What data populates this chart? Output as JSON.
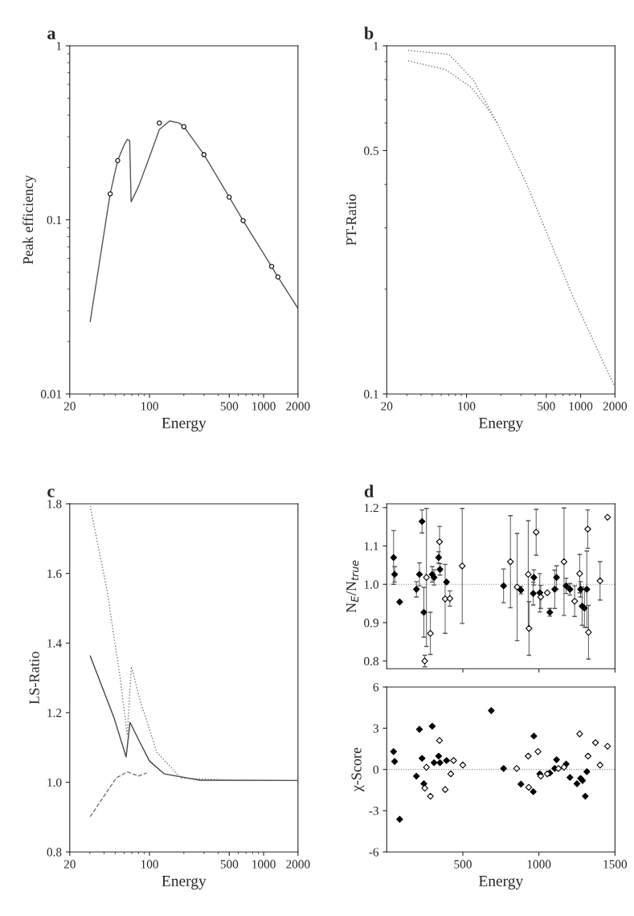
{
  "chart_data": [
    {
      "type": "line",
      "title": "a",
      "xlabel": "Energy",
      "ylabel": "Peak efficiency",
      "log": "xy",
      "xlim": [
        20,
        2000
      ],
      "xticks": [
        20,
        100,
        500,
        1000,
        2000
      ],
      "ylim": [
        0.01,
        1
      ],
      "yticks": [
        0.01,
        0.1,
        1
      ],
      "series": [
        {
          "type": "line",
          "color": "#555555",
          "line_style": "solid",
          "x": [
            30.2,
            45.2,
            52.6,
            60,
            64,
            67,
            69,
            80,
            100,
            122,
            150,
            182,
            200,
            300,
            500,
            661,
            1000,
            1334,
            2000
          ],
          "values": [
            0.026,
            0.141,
            0.219,
            0.27,
            0.29,
            0.285,
            0.127,
            0.155,
            0.23,
            0.33,
            0.37,
            0.36,
            0.343,
            0.237,
            0.135,
            0.099,
            0.064,
            0.047,
            0.031
          ]
        },
        {
          "type": "scatter",
          "color": "#ffffff",
          "marker": "circle",
          "x": [
            45.2,
            52.6,
            122,
            200,
            300,
            499,
            661,
            1175,
            1334
          ],
          "values": [
            0.141,
            0.219,
            0.36,
            0.343,
            0.237,
            0.135,
            0.099,
            0.054,
            0.047
          ]
        }
      ]
    },
    {
      "type": "line",
      "title": "b",
      "xlabel": "Energy",
      "ylabel": "PT-Ratio",
      "log": "xy",
      "xlim": [
        20,
        2000
      ],
      "xticks": [
        20,
        100,
        500,
        1000,
        2000
      ],
      "ylim": [
        0.1,
        1
      ],
      "yticks": [
        0.1,
        0.5,
        1
      ],
      "series": [
        {
          "color": "#777777",
          "line_style": "dotted",
          "x": [
            30.8,
            70,
            114,
            186,
            338,
            857,
            1960
          ],
          "values": [
            0.97,
            0.945,
            0.8,
            0.6,
            0.4,
            0.19,
            0.106
          ]
        },
        {
          "color": "#777777",
          "line_style": "dotted",
          "x": [
            30.8,
            65,
            110,
            148,
            186
          ],
          "values": [
            0.905,
            0.855,
            0.76,
            0.67,
            0.6
          ]
        }
      ]
    },
    {
      "type": "line",
      "title": "c",
      "xlabel": "Energy",
      "ylabel": "LS-Ratio",
      "log": "x",
      "xlim": [
        20,
        2000
      ],
      "xticks": [
        20,
        100,
        500,
        1000,
        2000
      ],
      "ylim": [
        0.8,
        1.8
      ],
      "yticks": [
        0.8,
        {
          "value": 1.0,
          "label": "1.0"
        },
        1.2,
        1.4,
        1.6,
        1.8
      ],
      "series": [
        {
          "color": "#444444",
          "line_style": "solid",
          "x": [
            30.2,
            49,
            62.4,
            67.5,
            80,
            100,
            135,
            275,
            2000
          ],
          "values": [
            1.363,
            1.184,
            1.073,
            1.172,
            1.123,
            1.061,
            1.024,
            1.006,
            1.005
          ]
        },
        {
          "color": "#777777",
          "line_style": "dotted",
          "x": [
            30.2,
            42.3,
            55,
            63.8,
            69.4,
            83,
            116,
            189,
            581,
            2000
          ],
          "values": [
            1.794,
            1.554,
            1.307,
            1.135,
            1.332,
            1.234,
            1.086,
            1.012,
            1.006,
            1.005
          ]
        },
        {
          "color": "#777777",
          "line_style": "dashed",
          "x": [
            30.2,
            51,
            63.8,
            80,
            94.6
          ],
          "values": [
            0.901,
            1.012,
            1.03,
            1.018,
            1.027
          ]
        }
      ]
    },
    {
      "type": "scatter",
      "title": "d",
      "ylabel": "N$_{E}$/N$_{true}$",
      "xlim": [
        0,
        1500
      ],
      "xticks": [
        500,
        1000,
        1500
      ],
      "ylim": [
        0.78,
        1.21
      ],
      "yticks": [
        0.8,
        0.9,
        {
          "value": 1.0,
          "label": "1.0"
        },
        1.1,
        1.2
      ],
      "tick_labels": "y",
      "marker": "diamond",
      "ref_lines": [
        {
          "axis": "y",
          "value": 1.0,
          "color": "#888888",
          "line_style": "dotted"
        }
      ],
      "series": [
        {
          "color": "#000000",
          "x": [
            45,
            52,
            85,
            195,
            215,
            232,
            244,
            299,
            311,
            341,
            350,
            393,
            768,
            882,
            963,
            967,
            1006,
            1072,
            1104,
            1116,
            1179,
            1204,
            1274,
            1284,
            1299,
            1315
          ],
          "values": [
            1.07,
            1.026,
            0.954,
            0.987,
            1.026,
            1.164,
            0.927,
            1.026,
            1.018,
            1.07,
            1.039,
            1.006,
            0.996,
            0.985,
            0.976,
            1.018,
            0.978,
            0.927,
            0.987,
            1.018,
            0.996,
            0.987,
            0.987,
            0.943,
            0.938,
            0.987
          ],
          "errors": [
            0.07,
            0.02,
            null,
            0.02,
            0.03,
            0.03,
            0.065,
            0.02,
            0.02,
            0.015,
            0.015,
            null,
            0.044,
            0.01,
            0.03,
            0.02,
            0.05,
            0.01,
            0.05,
            0.03,
            0.02,
            0.015,
            0.02,
            0.05,
            0.05,
            0.1
          ]
        },
        {
          "color": "#ffffff",
          "x": [
            250,
            261,
            287,
            347,
            384,
            415,
            496,
            813,
            857,
            930,
            935,
            982,
            1012,
            1055,
            1165,
            1235,
            1268,
            1321,
            1326,
            1402,
            1451
          ],
          "values": [
            0.8,
            1.018,
            0.872,
            1.111,
            0.962,
            0.963,
            1.048,
            1.059,
            0.993,
            1.026,
            0.885,
            1.136,
            0.967,
            0.978,
            1.059,
            0.956,
            1.028,
            1.144,
            0.875,
            1.009,
            1.175
          ],
          "errors": [
            0.015,
            0.18,
            0.055,
            0.04,
            0.09,
            0.02,
            0.15,
            0.12,
            0.14,
            0.14,
            0.07,
            0.06,
            0.03,
            null,
            0.14,
            0.04,
            0.05,
            0.05,
            0.07,
            0.05,
            null
          ]
        }
      ]
    },
    {
      "type": "scatter",
      "xlabel": "Energy",
      "ylabel": "χ-Score",
      "xlim": [
        0,
        1500
      ],
      "xticks": [
        500,
        1000,
        1500
      ],
      "ylim": [
        -6,
        6
      ],
      "yticks": [
        -6,
        -3,
        0,
        3,
        6
      ],
      "marker": "diamond",
      "ref_lines": [
        {
          "axis": "y",
          "value": 0,
          "color": "#888888",
          "line_style": "dotted"
        }
      ],
      "series": [
        {
          "color": "#000000",
          "x": [
            45,
            52,
            85,
            195,
            215,
            232,
            244,
            299,
            311,
            341,
            350,
            393,
            687,
            768,
            882,
            963,
            967,
            1006,
            1072,
            1104,
            1116,
            1179,
            1204,
            1250,
            1274,
            1287,
            1305,
            1315
          ],
          "values": [
            1.3,
            0.58,
            -3.63,
            -0.49,
            2.92,
            0.81,
            -1.04,
            3.15,
            0.49,
            0.97,
            0.49,
            0.65,
            4.28,
            0.07,
            -1.07,
            -1.62,
            2.43,
            -0.32,
            -0.26,
            0.07,
            0.71,
            0.39,
            -0.58,
            -1.04,
            -0.65,
            -0.81,
            -1.95,
            -0.16
          ]
        },
        {
          "color": "#ffffff",
          "x": [
            250,
            261,
            287,
            347,
            384,
            421,
            439,
            500,
            854,
            930,
            933,
            994,
            1012,
            1055,
            1128,
            1165,
            1268,
            1323,
            1372,
            1402,
            1451
          ],
          "values": [
            -1.36,
            0.16,
            -1.95,
            2.11,
            -1.46,
            -0.32,
            0.65,
            0.32,
            0.07,
            0.97,
            -1.3,
            1.3,
            -0.49,
            -0.32,
            0.07,
            0.16,
            2.59,
            0.97,
            1.95,
            0.32,
            1.69
          ]
        }
      ]
    }
  ]
}
